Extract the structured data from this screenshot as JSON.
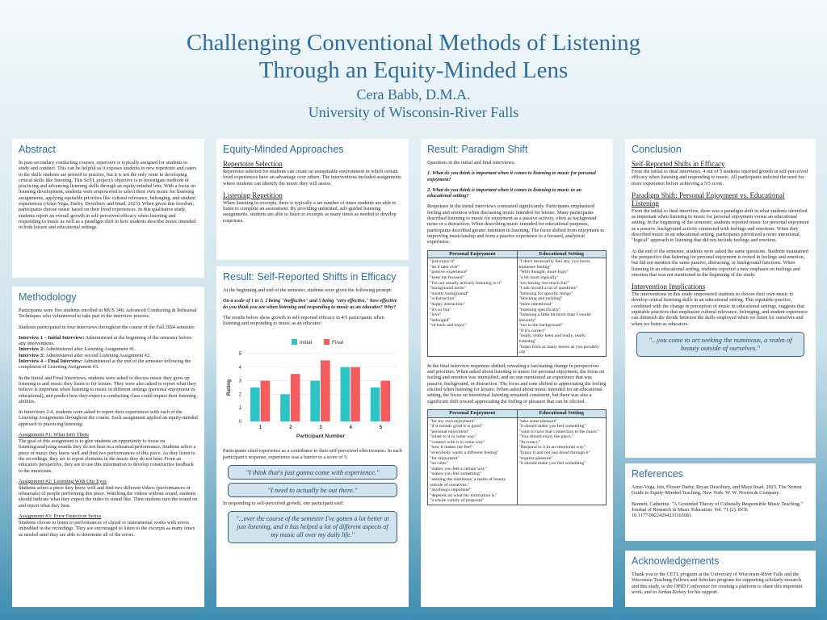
{
  "header": {
    "title_line1": "Challenging Conventional Methods of Listening",
    "title_line2": "Through an Equity-Minded Lens",
    "author": "Cera Babb, D.M.A.",
    "affiliation": "University of Wisconsin-River Falls"
  },
  "abstract": {
    "heading": "Abstract",
    "text": "In post-secondary conducting courses, repertoire is typically assigned for students to study and conduct. This can be helpful as it exposes students to new repertoire and caters to the skills students are primed to practice, but it is not the only route to developing critical skills like listening. This SoTL project's objective is to investigate methods of practicing and advancing listening skills through an equity-minded lens. With a focus on listening development, students were empowered to select their own music for listening assignments, applying equitable priorities like cultural relevance, belonging, and student experiences (Artze-Vega, Darby, Dewsbury and Imad, 2023). When given this freedom, participants choose music based on their lived experiences. In this qualitative study, students report an overall growth in self-perceived efficacy when listening and responding to music as well as a paradigm shift in how students describe music intended in both leisure and educational settings."
  },
  "methodology": {
    "heading": "Methodology",
    "p1": "Participants were five students enrolled in MUS 346: Advanced Conducting & Rehearsal Techniques who volunteered to take part in the interview process.",
    "p2": "Students participated in four interviews throughout the course of the Fall 2024 semester:",
    "interviews": [
      {
        "label": "Interview 1 – Initial Interview:",
        "text": " Administered at the beginning of the semester before any interventions."
      },
      {
        "label": "Interview 2:",
        "text": " Administered after Listening Assignment #1."
      },
      {
        "label": "Interview 3:",
        "text": " Administered after second Listening Assignment #2."
      },
      {
        "label": "Interview 4 – Final Interview:",
        "text": " Administered at the end of the semester following the completion of Listening Assignment #3."
      }
    ],
    "p3": "In the Initial and Final Interviews, students were asked to discuss music they grew up listening to and music they listen to for leisure. They were also asked to report what they believe is important when listening to music in different settings (personal enjoyment vs. educational), and predict how they expect a conducting class could impact their listening abilities.",
    "p4": "In Interviews 2-4, students were asked to report their experiences with each of the Listening Assignments throughout the course. Each assignment applied an equity-minded approach to practicing listening.",
    "a1_title": "Assignment #1: What Isn't There",
    "a1_text": "The goal of this assignment is to give students an opportunity to focus on listening/analyzing sounds they do not hear in a rehearsal/performance. Students select a piece of music they know well and find two performances of this piece. As they listen to the recordings, they are to report elements in the music they do not hear. From an educators perspective, they are to use this information to develop constructive feedback to the musicians.",
    "a2_title": "Assignment #2: Listening With Our Eyes",
    "a2_text": "Students select a piece they know well and find two different videos (performances or rehearsals) of people performing this piece. Watching the videos without sound, students should indicate what they expect the video to sound like. Then students turn the sound on and report what they hear.",
    "a3_title": "Assignment #3: Error Detection Series",
    "a3_text": "Students choose to listen to performances of choral or instrumental works with errors imbedded in the recordings. They are encouraged to listen to the excerpts as many times as needed until they are able to determine all of the errors."
  },
  "equity": {
    "heading": "Equity-Minded Approaches",
    "s1_title": "Repertoire Selection",
    "s1_text": "Repertoire selected for students can create an unequitable environment in which certain lived experiences have an advantage over others. The interventions included assignments where students can identify the music they will assess.",
    "s2_title": "Listening Repetition",
    "s2_text": "When listening to excerpts, there is typically a set number of times students are able to listen to complete an assessment. By providing unlimited, self-guided listening assignments, students are able to listen to excerpts as many times as needed to develop responses."
  },
  "efficacy": {
    "heading": "Result: Self-Reported Shifts in Efficacy",
    "p1": "At the beginning and end of the semester, students were given the following prompt:",
    "prompt": "On a scale of 1 to 5, 1 being \"ineffective\" and 5 being \"very effective,\" how effective do you think you are when listening and responding to music as an educator? Why?",
    "p2": "The results below show growth in self-reported efficacy in 4/5 participants when listening and responding to music as an educator:",
    "p3": "Participants cited experience as a contributor to their self-perceived effectiveness. In each participant's response, experience was a barrier to a score of 5:",
    "quote1": "\"I think that's just gonna come with experience.\"",
    "quote2": "\"I need to actually be out there.\"",
    "p4": "In responding to self-perceived growth, one participant said:",
    "quote3": "\"...over the course of the semester I've gotten a lot better at just listening, and it has helped a lot of different aspects of my music all over my daily life.\""
  },
  "chart_data": {
    "type": "bar",
    "categories": [
      "1",
      "2",
      "3",
      "4",
      "5"
    ],
    "series": [
      {
        "name": "Initial",
        "values": [
          2.5,
          2,
          3,
          4,
          2.5
        ],
        "color": "#2ec4c4"
      },
      {
        "name": "Final",
        "values": [
          3,
          3.5,
          4.5,
          4,
          3
        ],
        "color": "#f25c5c"
      }
    ],
    "xlabel": "Participant Number",
    "ylabel": "Rating",
    "ylim": [
      0,
      5
    ],
    "yticks": [
      0,
      1,
      2,
      3,
      4,
      5
    ],
    "legend": "top"
  },
  "paradigm": {
    "heading": "Result: Paradigm Shift",
    "intro": "Questions in the initial and final interviews:",
    "q1": "1. What do you think is important when it comes to listening to music for personal enjoyment?",
    "q2": "2. What do you think is important when it comes to listening to music in an educational setting?",
    "p1": "Responses in the initial interviews contrasted significantly. Participants emphasized feeling and emotion when discussing music intended for leisure. Many participants described listening to music for enjoyment as a passive activity, often as background noise or a distraction. When describing music intended for educational purposes, participants described greater intention in listening. The focus shifted from enjoyment to improving musicianship and from a passive experience to a focused, analytical experience.",
    "table1_headers": [
      "Personal Enjoyment",
      "Educational Setting"
    ],
    "table1_col1": [
      "\"just enjoy it\"",
      "\"let it take over\"",
      "\"passive experience\"",
      "\"keep me focused\"",
      "\"I'm not usually actively listening to it\"",
      "\"background noise\"",
      "\"mostly background\"",
      "\"a distraction\"",
      "\"happy distraction\"",
      "\"it's so fun\"",
      "\"love\"",
      "\"belonged\"",
      "\"sit back and enjoy\""
    ],
    "table1_col2": [
      "\"I don't necessarily feel any, you know, immense feeling\"",
      "\"With thought, more logic\"",
      "\"a bit more logically\"",
      "\"not having 'too much fun'\"",
      "\"I ask myself a lot of questions\"",
      "\"listening for specific things\"",
      "\"blocking and tackling\"",
      "\"more intentional\"",
      "\"listening specifically\"",
      "\"listening a little bit more than I would leisurely\"",
      "\"not in the background\"",
      "\"if it's correct\"",
      "\"really, really keen and really, really listening\"",
      "\"listen from as many lenses as you possibly can\""
    ],
    "p2": "In the final interview responses shifted, revealing a fascinating change in perspectives and priorities. When asked about listening to music for personal enjoyment, the focus on feeling and emotion was intensified, and no one mentioned an experience that was passive, background, or distraction. The focus and tone shifted to appreciating the feeling elicited when listening for leisure. When asked about music intended for an educational setting, the focus on intentional listening remained consistent, but there was also a significant shift toward appreciating the feeling or pleasure that can be elicited.",
    "table2_headers": [
      "Personal Enjoyment",
      "Educational Setting"
    ],
    "table2_col1": [
      "\"for my own enjoyment\"",
      "\"if it sounds good it is good.\"",
      "\"personal enjoyment\"",
      "\"relate to it in some way\"",
      "\"connect with it in some way\"",
      "\"how it makes me feel\"",
      "\"everybody wants a different feeling\"",
      "\"for enjoyment\"",
      "\"no rules\"",
      "\"makes you feel a certain way\"",
      "\"makes you feel something\"",
      "\"seeking the numinous, a realm of beauty outside of ourselves.\"",
      "\"anything's important\"",
      "\"depends on what my motivation is\"",
      "\"a whole variety of purposes\""
    ],
    "table2_col2": [
      "\"take some pleasure\"",
      "\"it should make you feel something\"",
      "\"want to have that connection to the music\"",
      "\"You should enjoy the piece.\"",
      "\"Accuracy\"",
      "\"Respond to it in an emotional way\"",
      "\"Enjoy it and not just dread through it\"",
      "\"express pleasure\"",
      "\"it should make you feel something\""
    ]
  },
  "conclusion": {
    "heading": "Conclusion",
    "s1_title": "Self-Reported Shifts in Efficacy",
    "s1_text": "From the initial to final interviews, 4 out of 5 students reported growth in self-perceived efficacy when listening and responding to music. All participants indicted the need for more experience before achieving a 5/5 score.",
    "s2_title": "Paradigm Shift: Personal Enjoyment vs. Educational Listening",
    "s2_text": "From the initial to final interview, there was a paradigm shift in what students identified as important when listening to music for personal enjoyment versus an educational setting. In the beginning of the semester, students reported music for personal enjoyment as a passive, background activity connected with feelings and emotions. When they described music in an educational setting, participants prioritized a more intentional, \"logical\" approach to listening that did not include feelings and emotion.",
    "s2_text2": "At the end of the semester, students were asked the same questions. Students maintained the perspective that listening for personal enjoyment is rooted in feelings and emotion, but did not mention the same passive, distracting, or background functions. When listening in an educational setting, students reported a new emphasis on feelings and emotion that was not mentioned in the beginning of the study.",
    "s3_title": "Intervention Implications",
    "s3_text": "The interventions in this study empowered students to choose their own music to develop critical listening skills in an educational setting. This equitable practice, combined with the change in perception of music in educational settings, suggests that equitable practices that emphasize cultural relevance, belonging, and student experience can diminish the divide between the skills employed when we listen for ourselves and when we listen as educators.",
    "quote": "\"...you come to art seeking the numinous, a realm of beauty outside of ourselves.\""
  },
  "references": {
    "heading": "References",
    "r1": "Artze-Vega, Isis, Flower Darby, Bryan Dewsbury, and Mays Imad. 2023. The Norton Guide to Equity-Minded Teaching. New York: W. W. Norton & Company.",
    "r2": "Bennett, Catherine. \"A Grounded Theory of Culturally Responsible Music Teaching.\" Journal of Research in Music Education: Vol. 71 (2). DOI: 10.1177/00224294231165681."
  },
  "ack": {
    "heading": "Acknowledgements",
    "text": "Thank you to the CETL program at the University of Wisconsin-River Falls and the Wisconsin Teaching Fellows and Scholars program for supporting scholarly research and this study, to the OPID Conference for creating a platform to share this important work, and to Jordan Kirkey for his support."
  }
}
